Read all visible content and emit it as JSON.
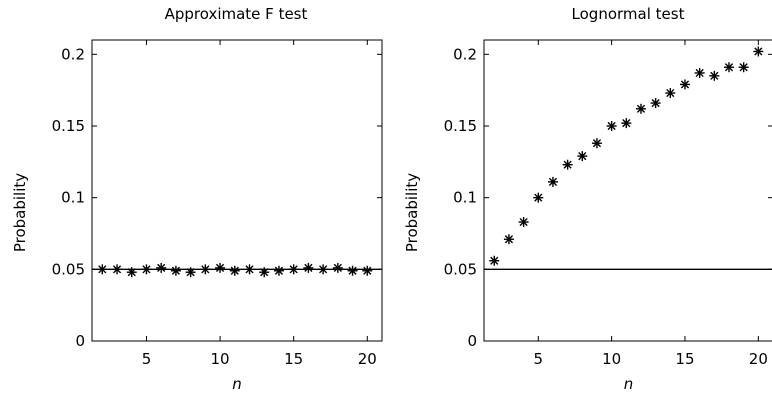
{
  "chart_data": [
    {
      "type": "scatter",
      "title": "Approximate F test",
      "xlabel": "n",
      "ylabel": "Probability",
      "xlim": [
        1.3,
        21
      ],
      "ylim": [
        0,
        0.21
      ],
      "xticks": [
        5,
        10,
        15,
        20
      ],
      "yticks": [
        0,
        0.05,
        0.1,
        0.15,
        0.2
      ],
      "yticklabels": [
        "0",
        "0.05",
        "0.1",
        "0.15",
        "0.2"
      ],
      "reference_line": 0.05,
      "marker": "asterisk",
      "grid": false,
      "series": [
        {
          "x": [
            2,
            3,
            4,
            5,
            6,
            7,
            8,
            9,
            10,
            11,
            12,
            13,
            14,
            15,
            16,
            17,
            18,
            19,
            20
          ],
          "values": [
            0.05,
            0.05,
            0.048,
            0.05,
            0.051,
            0.049,
            0.048,
            0.05,
            0.051,
            0.049,
            0.05,
            0.048,
            0.049,
            0.05,
            0.051,
            0.05,
            0.051,
            0.049,
            0.049
          ]
        }
      ]
    },
    {
      "type": "scatter",
      "title": "Lognormal test",
      "xlabel": "n",
      "ylabel": "Probability",
      "xlim": [
        1.3,
        21
      ],
      "ylim": [
        0,
        0.21
      ],
      "xticks": [
        5,
        10,
        15,
        20
      ],
      "yticks": [
        0,
        0.05,
        0.1,
        0.15,
        0.2
      ],
      "yticklabels": [
        "0",
        "0.05",
        "0.1",
        "0.15",
        "0.2"
      ],
      "reference_line": 0.05,
      "marker": "asterisk",
      "grid": false,
      "series": [
        {
          "x": [
            2,
            3,
            4,
            5,
            6,
            7,
            8,
            9,
            10,
            11,
            12,
            13,
            14,
            15,
            16,
            17,
            18,
            19,
            20
          ],
          "values": [
            0.056,
            0.071,
            0.083,
            0.1,
            0.111,
            0.123,
            0.129,
            0.138,
            0.15,
            0.152,
            0.162,
            0.166,
            0.173,
            0.179,
            0.187,
            0.185,
            0.191,
            0.191,
            0.202
          ]
        }
      ]
    }
  ]
}
